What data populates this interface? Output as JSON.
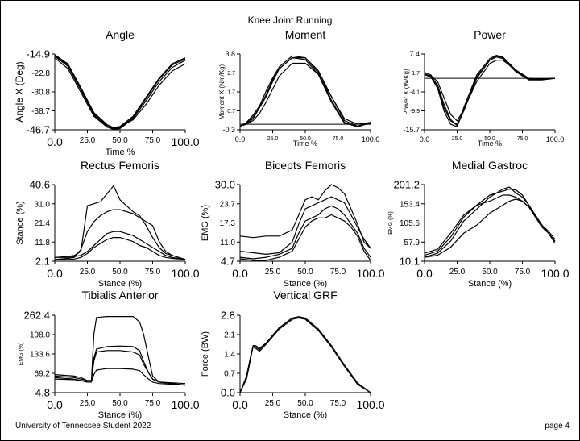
{
  "page": {
    "title": "Knee Joint Running",
    "footer_left": "University of Tennessee Student 2022",
    "footer_right": "page 4"
  },
  "chart_data": [
    {
      "id": "angle",
      "type": "line",
      "title": "Angle",
      "xlabel": "Time %",
      "ylabel": "Angle X  (Deg)",
      "xlim": [
        0,
        100
      ],
      "ylim": [
        -46.7,
        -14.9
      ],
      "xticks": [
        "0.0",
        "25.0",
        "50.0",
        "75.0",
        "100.0"
      ],
      "yticks": [
        "-46.7",
        "-38.7",
        "-30.8",
        "-22.8",
        "-14.9"
      ],
      "x": [
        0,
        10,
        20,
        30,
        40,
        45,
        50,
        60,
        70,
        80,
        90,
        100
      ],
      "series": [
        {
          "values": [
            -15.2,
            -19,
            -29,
            -39.5,
            -44.5,
            -45.8,
            -45.3,
            -41,
            -33,
            -25,
            -19,
            -16.5
          ]
        },
        {
          "values": [
            -15.5,
            -19.5,
            -29.5,
            -40,
            -45,
            -46.2,
            -45.8,
            -41.5,
            -33.5,
            -25.5,
            -19.5,
            -17
          ]
        },
        {
          "values": [
            -15.8,
            -20,
            -30,
            -40.5,
            -45.5,
            -46.5,
            -46.2,
            -42,
            -34.5,
            -26.5,
            -20.5,
            -17.5
          ]
        },
        {
          "values": [
            -16.5,
            -21,
            -31,
            -41,
            -45.5,
            -46,
            -45.5,
            -42.5,
            -36,
            -28,
            -22,
            -19
          ]
        }
      ]
    },
    {
      "id": "moment",
      "type": "line",
      "title": "Moment",
      "xlabel": "Time %",
      "ylabel": "Moment X (Nm/Kg)",
      "xlim": [
        0,
        100
      ],
      "ylim": [
        -0.3,
        3.8
      ],
      "xticks": [
        "0.0",
        "25.0",
        "50.0",
        "75.0",
        "100.0"
      ],
      "yticks": [
        "-0.3",
        "0.7",
        "1.7",
        "2.7",
        "3.8"
      ],
      "x": [
        0,
        5,
        10,
        15,
        20,
        25,
        30,
        40,
        50,
        60,
        70,
        80,
        90,
        100
      ],
      "hline": 0,
      "series": [
        {
          "values": [
            -0.1,
            0.1,
            0.5,
            1.0,
            1.8,
            2.5,
            3.1,
            3.7,
            3.6,
            2.8,
            1.3,
            0.1,
            -0.15,
            0.1
          ]
        },
        {
          "values": [
            -0.1,
            0.05,
            0.4,
            0.9,
            1.5,
            2.3,
            3.0,
            3.6,
            3.6,
            2.9,
            1.5,
            0.2,
            -0.1,
            0.1
          ]
        },
        {
          "values": [
            -0.1,
            0.0,
            0.3,
            0.9,
            1.6,
            2.4,
            3.0,
            3.6,
            3.5,
            2.7,
            1.2,
            0.05,
            -0.1,
            0.05
          ]
        },
        {
          "values": [
            -0.1,
            0.0,
            0.2,
            0.6,
            1.2,
            1.9,
            2.6,
            3.3,
            3.3,
            2.7,
            1.5,
            0.3,
            0.0,
            0.1
          ]
        }
      ]
    },
    {
      "id": "power",
      "type": "line",
      "title": "Power",
      "xlabel": "Time %",
      "ylabel": "Power X (W/Kg)",
      "xlim": [
        0,
        100
      ],
      "ylim": [
        -15.7,
        7.4
      ],
      "xticks": [
        "0.0",
        "25.0",
        "50.0",
        "75.0",
        "100.0"
      ],
      "yticks": [
        "-15.7",
        "-9.9",
        "-4.1",
        "1.7",
        "7.4"
      ],
      "x": [
        0,
        5,
        10,
        15,
        20,
        25,
        30,
        40,
        50,
        55,
        60,
        70,
        80,
        90,
        100
      ],
      "hline": 0,
      "series": [
        {
          "values": [
            1.5,
            0.5,
            -2,
            -8,
            -12.5,
            -14.5,
            -10,
            0,
            5.5,
            6.5,
            6,
            2,
            -0.5,
            -0.5,
            0
          ]
        },
        {
          "values": [
            1.2,
            0.3,
            -3,
            -10,
            -14,
            -14.8,
            -9,
            1,
            6,
            7,
            6.5,
            2.5,
            -0.3,
            -0.2,
            0
          ]
        },
        {
          "values": [
            1.0,
            0.8,
            -1,
            -6,
            -11,
            -13,
            -9.5,
            -1,
            4.5,
            5.5,
            5.5,
            2.5,
            0,
            -0.3,
            0
          ]
        },
        {
          "values": [
            1.8,
            1.0,
            -2.5,
            -9,
            -13,
            -14,
            -10,
            0.5,
            5.5,
            6.8,
            6.3,
            2.2,
            -0.4,
            -0.4,
            0
          ]
        }
      ]
    },
    {
      "id": "rectus",
      "type": "line",
      "title": "Rectus Femoris",
      "xlabel": "Stance (%)",
      "ylabel": "Stance (%)",
      "xlim": [
        0,
        100
      ],
      "ylim": [
        2.1,
        40.6
      ],
      "xticks": [
        "0.0",
        "25.0",
        "50.0",
        "75.0",
        "100.0"
      ],
      "yticks": [
        "2.1",
        "11.8",
        "21.4",
        "31.0",
        "40.6"
      ],
      "x": [
        0,
        10,
        15,
        20,
        25,
        30,
        35,
        40,
        45,
        50,
        55,
        60,
        65,
        70,
        75,
        80,
        85,
        90,
        100
      ],
      "series": [
        {
          "values": [
            4,
            4.5,
            5,
            7,
            30,
            31,
            32,
            36,
            40,
            33,
            30,
            27,
            25,
            20,
            14,
            9,
            6,
            5,
            3
          ]
        },
        {
          "values": [
            3,
            3.5,
            4,
            8,
            17,
            22,
            25,
            27,
            28,
            28,
            27,
            26,
            24,
            22,
            20,
            12,
            7,
            5,
            3
          ]
        },
        {
          "values": [
            4,
            4,
            4.5,
            5,
            7,
            10,
            13,
            16,
            17,
            17,
            16,
            15,
            13,
            11,
            9,
            7,
            5,
            4,
            3
          ]
        },
        {
          "values": [
            3,
            3,
            3.2,
            4,
            6,
            9,
            11,
            13,
            14,
            14,
            13,
            12,
            10,
            9,
            7,
            5,
            4,
            3.5,
            3
          ]
        }
      ]
    },
    {
      "id": "biceps",
      "type": "line",
      "title": "Bicepts Femoris",
      "xlabel": "Stance (%)",
      "ylabel": "EMG (%)",
      "xlim": [
        0,
        100
      ],
      "ylim": [
        4.7,
        30.0
      ],
      "xticks": [
        "0.0",
        "25.0",
        "50.0",
        "75.0",
        "100.0"
      ],
      "yticks": [
        "4.7",
        "11.0",
        "17.3",
        "23.7",
        "30.0"
      ],
      "x": [
        0,
        10,
        20,
        30,
        40,
        45,
        50,
        55,
        60,
        65,
        70,
        75,
        80,
        85,
        90,
        95,
        100
      ],
      "series": [
        {
          "values": [
            13,
            12.5,
            13,
            13,
            15,
            20,
            25,
            26,
            25,
            28,
            30,
            29,
            27,
            22,
            17,
            11,
            9
          ]
        },
        {
          "values": [
            8,
            7.5,
            7,
            7.5,
            11,
            17,
            22,
            23,
            24,
            25,
            26,
            25,
            24,
            20,
            16,
            12,
            9
          ]
        },
        {
          "values": [
            6,
            5.5,
            6,
            7,
            9,
            14,
            18,
            19,
            20,
            22,
            23,
            22,
            20,
            17,
            14,
            9,
            6
          ]
        },
        {
          "values": [
            5.5,
            5,
            5,
            6,
            8,
            12,
            16,
            18,
            19,
            19,
            20,
            19,
            18,
            16,
            13,
            8,
            5
          ]
        }
      ]
    },
    {
      "id": "gastroc",
      "type": "line",
      "title": "Medial Gastroc",
      "xlabel": "Stance (%)",
      "ylabel": "EMG (%)",
      "xlim": [
        0,
        100
      ],
      "ylim": [
        10.1,
        201.2
      ],
      "xticks": [
        "0.0",
        "25.0",
        "50.0",
        "75.0",
        "100.0"
      ],
      "yticks": [
        "10.1",
        "57.9",
        "105.6",
        "153.4",
        "201.2"
      ],
      "x": [
        0,
        10,
        20,
        30,
        40,
        50,
        60,
        65,
        70,
        75,
        80,
        85,
        90,
        95,
        100
      ],
      "series": [
        {
          "values": [
            20,
            30,
            60,
            110,
            140,
            170,
            190,
            195,
            180,
            170,
            150,
            120,
            95,
            80,
            60
          ]
        },
        {
          "values": [
            25,
            35,
            70,
            120,
            150,
            175,
            185,
            190,
            188,
            175,
            150,
            125,
            100,
            80,
            55
          ]
        },
        {
          "values": [
            30,
            40,
            80,
            125,
            150,
            160,
            175,
            175,
            170,
            160,
            145,
            120,
            100,
            85,
            65
          ]
        },
        {
          "values": [
            20,
            25,
            45,
            80,
            100,
            130,
            150,
            160,
            165,
            160,
            145,
            125,
            100,
            80,
            60
          ]
        }
      ]
    },
    {
      "id": "tibialis",
      "type": "line",
      "title": "Tibialis Anterior",
      "xlabel": "Stance (%)",
      "ylabel": "EMG (%)",
      "xlim": [
        0,
        100
      ],
      "ylim": [
        4.8,
        262.4
      ],
      "xticks": [
        "0.0",
        "25.0",
        "50.0",
        "75.0",
        "100.0"
      ],
      "yticks": [
        "4.8",
        "69.2",
        "133.6",
        "198.0",
        "262.4"
      ],
      "x": [
        0,
        15,
        20,
        25,
        28,
        30,
        32,
        40,
        50,
        60,
        65,
        68,
        72,
        75,
        80,
        100
      ],
      "series": [
        {
          "values": [
            55,
            50,
            45,
            40,
            40,
            200,
            255,
            258,
            258,
            258,
            240,
            200,
            120,
            60,
            40,
            30
          ]
        },
        {
          "values": [
            60,
            55,
            50,
            45,
            45,
            120,
            150,
            158,
            160,
            158,
            145,
            110,
            70,
            50,
            40,
            30
          ]
        },
        {
          "values": [
            65,
            60,
            55,
            45,
            45,
            110,
            140,
            145,
            145,
            140,
            130,
            100,
            70,
            50,
            40,
            35
          ]
        },
        {
          "values": [
            50,
            48,
            45,
            40,
            40,
            65,
            80,
            85,
            85,
            83,
            78,
            65,
            50,
            40,
            35,
            30
          ]
        }
      ]
    },
    {
      "id": "grf",
      "type": "line",
      "title": "Vertical GRF",
      "xlabel": "Stance (%)",
      "ylabel": "Force (BW)",
      "xlim": [
        0,
        100
      ],
      "ylim": [
        0.0,
        2.8
      ],
      "xticks": [
        "0.0",
        "25.0",
        "50.0",
        "75.0",
        "100.0"
      ],
      "yticks": [
        "0.0",
        "0.7",
        "1.4",
        "2.1",
        "2.8"
      ],
      "x": [
        0,
        5,
        8,
        10,
        12,
        15,
        20,
        30,
        40,
        45,
        50,
        60,
        70,
        80,
        90,
        100
      ],
      "series": [
        {
          "values": [
            0,
            0.6,
            1.3,
            1.7,
            1.65,
            1.55,
            1.8,
            2.35,
            2.7,
            2.75,
            2.7,
            2.3,
            1.7,
            1.0,
            0.35,
            0
          ]
        },
        {
          "values": [
            0,
            0.55,
            1.25,
            1.65,
            1.6,
            1.5,
            1.75,
            2.3,
            2.65,
            2.7,
            2.65,
            2.25,
            1.65,
            0.95,
            0.3,
            0
          ]
        },
        {
          "values": [
            0,
            0.5,
            1.2,
            1.7,
            1.7,
            1.6,
            1.8,
            2.3,
            2.65,
            2.72,
            2.68,
            2.3,
            1.7,
            1.0,
            0.35,
            0
          ]
        }
      ]
    }
  ]
}
